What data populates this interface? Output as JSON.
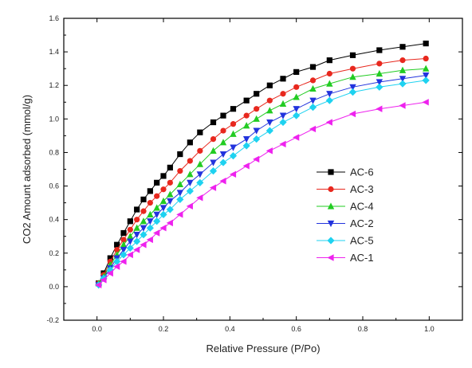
{
  "chart_data": {
    "type": "line",
    "title": "",
    "xlabel": "Relative Pressure (P/Po)",
    "ylabel": "CO2 Amount adsorbed (mmol/g)",
    "xlim": [
      -0.1,
      1.1
    ],
    "ylim": [
      -0.2,
      1.6
    ],
    "xticks": [
      "0.0",
      "0.2",
      "0.4",
      "0.6",
      "0.8",
      "1.0"
    ],
    "xtick_values": [
      0.0,
      0.2,
      0.4,
      0.6,
      0.8,
      1.0
    ],
    "yticks": [
      "-0.2",
      "0.0",
      "0.2",
      "0.4",
      "0.6",
      "0.8",
      "1.0",
      "1.2",
      "1.4",
      "1.6"
    ],
    "ytick_values": [
      -0.2,
      0.0,
      0.2,
      0.4,
      0.6,
      0.8,
      1.0,
      1.2,
      1.4,
      1.6
    ],
    "grid": false,
    "legend_position": "center-right",
    "series": [
      {
        "name": "AC-6",
        "color": "#000000",
        "marker": "square",
        "x": [
          0.005,
          0.02,
          0.04,
          0.06,
          0.08,
          0.1,
          0.12,
          0.14,
          0.16,
          0.18,
          0.2,
          0.22,
          0.25,
          0.28,
          0.31,
          0.35,
          0.38,
          0.41,
          0.45,
          0.48,
          0.52,
          0.56,
          0.6,
          0.65,
          0.7,
          0.77,
          0.85,
          0.92,
          0.99
        ],
        "y": [
          0.02,
          0.08,
          0.17,
          0.25,
          0.32,
          0.39,
          0.46,
          0.52,
          0.57,
          0.62,
          0.66,
          0.71,
          0.79,
          0.86,
          0.92,
          0.98,
          1.02,
          1.06,
          1.11,
          1.15,
          1.2,
          1.24,
          1.28,
          1.31,
          1.35,
          1.38,
          1.41,
          1.43,
          1.45
        ]
      },
      {
        "name": "AC-3",
        "color": "#e8281e",
        "marker": "circle",
        "x": [
          0.005,
          0.02,
          0.04,
          0.06,
          0.08,
          0.1,
          0.12,
          0.14,
          0.16,
          0.18,
          0.2,
          0.22,
          0.25,
          0.28,
          0.31,
          0.35,
          0.38,
          0.41,
          0.45,
          0.48,
          0.52,
          0.56,
          0.6,
          0.65,
          0.7,
          0.77,
          0.85,
          0.92,
          0.99
        ],
        "y": [
          0.02,
          0.07,
          0.15,
          0.22,
          0.28,
          0.34,
          0.4,
          0.45,
          0.5,
          0.54,
          0.58,
          0.62,
          0.69,
          0.75,
          0.81,
          0.88,
          0.93,
          0.97,
          1.02,
          1.06,
          1.11,
          1.15,
          1.19,
          1.23,
          1.27,
          1.3,
          1.33,
          1.35,
          1.36
        ]
      },
      {
        "name": "AC-4",
        "color": "#22cc22",
        "marker": "triangle-up",
        "x": [
          0.005,
          0.02,
          0.04,
          0.06,
          0.08,
          0.1,
          0.12,
          0.14,
          0.16,
          0.18,
          0.2,
          0.22,
          0.25,
          0.28,
          0.31,
          0.35,
          0.38,
          0.41,
          0.45,
          0.48,
          0.52,
          0.56,
          0.6,
          0.65,
          0.7,
          0.77,
          0.85,
          0.92,
          0.99
        ],
        "y": [
          0.02,
          0.06,
          0.13,
          0.19,
          0.25,
          0.3,
          0.35,
          0.39,
          0.43,
          0.47,
          0.51,
          0.55,
          0.61,
          0.67,
          0.73,
          0.81,
          0.86,
          0.91,
          0.96,
          1.0,
          1.05,
          1.09,
          1.13,
          1.18,
          1.21,
          1.25,
          1.27,
          1.29,
          1.3
        ]
      },
      {
        "name": "AC-2",
        "color": "#2233dd",
        "marker": "triangle-down",
        "x": [
          0.005,
          0.02,
          0.04,
          0.06,
          0.08,
          0.1,
          0.12,
          0.14,
          0.16,
          0.18,
          0.2,
          0.22,
          0.25,
          0.28,
          0.31,
          0.35,
          0.38,
          0.41,
          0.45,
          0.48,
          0.52,
          0.56,
          0.6,
          0.65,
          0.7,
          0.77,
          0.85,
          0.92,
          0.99
        ],
        "y": [
          0.01,
          0.05,
          0.11,
          0.17,
          0.22,
          0.27,
          0.31,
          0.35,
          0.39,
          0.43,
          0.47,
          0.51,
          0.56,
          0.62,
          0.67,
          0.74,
          0.79,
          0.83,
          0.88,
          0.93,
          0.98,
          1.02,
          1.06,
          1.11,
          1.15,
          1.19,
          1.22,
          1.24,
          1.26
        ]
      },
      {
        "name": "AC-5",
        "color": "#1ed2f0",
        "marker": "diamond",
        "x": [
          0.005,
          0.02,
          0.04,
          0.06,
          0.08,
          0.1,
          0.12,
          0.14,
          0.16,
          0.18,
          0.2,
          0.22,
          0.25,
          0.28,
          0.31,
          0.35,
          0.38,
          0.41,
          0.45,
          0.48,
          0.52,
          0.56,
          0.6,
          0.65,
          0.7,
          0.77,
          0.85,
          0.92,
          0.99
        ],
        "y": [
          0.01,
          0.05,
          0.1,
          0.15,
          0.19,
          0.23,
          0.27,
          0.31,
          0.35,
          0.39,
          0.43,
          0.46,
          0.52,
          0.57,
          0.62,
          0.69,
          0.74,
          0.78,
          0.84,
          0.88,
          0.93,
          0.98,
          1.02,
          1.07,
          1.11,
          1.16,
          1.19,
          1.21,
          1.23
        ]
      },
      {
        "name": "AC-1",
        "color": "#ee22ee",
        "marker": "triangle-left",
        "x": [
          0.005,
          0.02,
          0.04,
          0.06,
          0.08,
          0.1,
          0.12,
          0.14,
          0.16,
          0.18,
          0.2,
          0.22,
          0.25,
          0.28,
          0.31,
          0.35,
          0.38,
          0.41,
          0.45,
          0.48,
          0.52,
          0.56,
          0.6,
          0.65,
          0.7,
          0.77,
          0.85,
          0.92,
          0.99
        ],
        "y": [
          0.01,
          0.04,
          0.08,
          0.12,
          0.15,
          0.19,
          0.22,
          0.25,
          0.28,
          0.32,
          0.35,
          0.38,
          0.43,
          0.48,
          0.53,
          0.59,
          0.63,
          0.67,
          0.72,
          0.76,
          0.81,
          0.85,
          0.89,
          0.94,
          0.98,
          1.03,
          1.06,
          1.08,
          1.1
        ]
      }
    ]
  }
}
